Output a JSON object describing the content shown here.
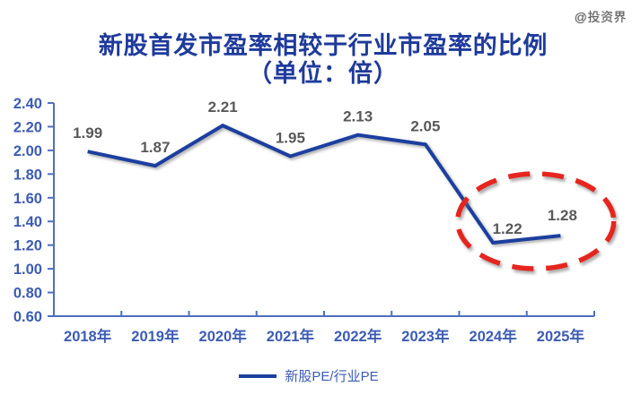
{
  "watermark": "@投资界",
  "chart_data": {
    "type": "line",
    "title": "新股首发市盈率相较于行业市盈率的比例",
    "subtitle": "（单位：倍）",
    "categories": [
      "2018年",
      "2019年",
      "2020年",
      "2021年",
      "2022年",
      "2023年",
      "2024年",
      "2025年"
    ],
    "series": [
      {
        "name": "新股PE/行业PE",
        "values": [
          1.99,
          1.87,
          2.21,
          1.95,
          2.13,
          2.05,
          1.22,
          1.28
        ]
      }
    ],
    "ylim": [
      0.6,
      2.4
    ],
    "ytick_step": 0.2,
    "ytick_labels": [
      "2.40",
      "2.20",
      "2.00",
      "1.80",
      "1.60",
      "1.40",
      "1.20",
      "1.00",
      "0.80",
      "0.60"
    ],
    "grid": false,
    "legend_position": "bottom",
    "annotation": {
      "shape": "dashed-ellipse",
      "highlights": [
        "2024年",
        "2025年"
      ]
    }
  },
  "colors": {
    "title": "#1e3a9b",
    "line": "#1c3f9f",
    "axis_line": "#4f6fbb",
    "axis_labels": "#3c5cb3",
    "data_labels": "#595959",
    "ellipse": "#e6251f",
    "watermark": "#606060"
  }
}
